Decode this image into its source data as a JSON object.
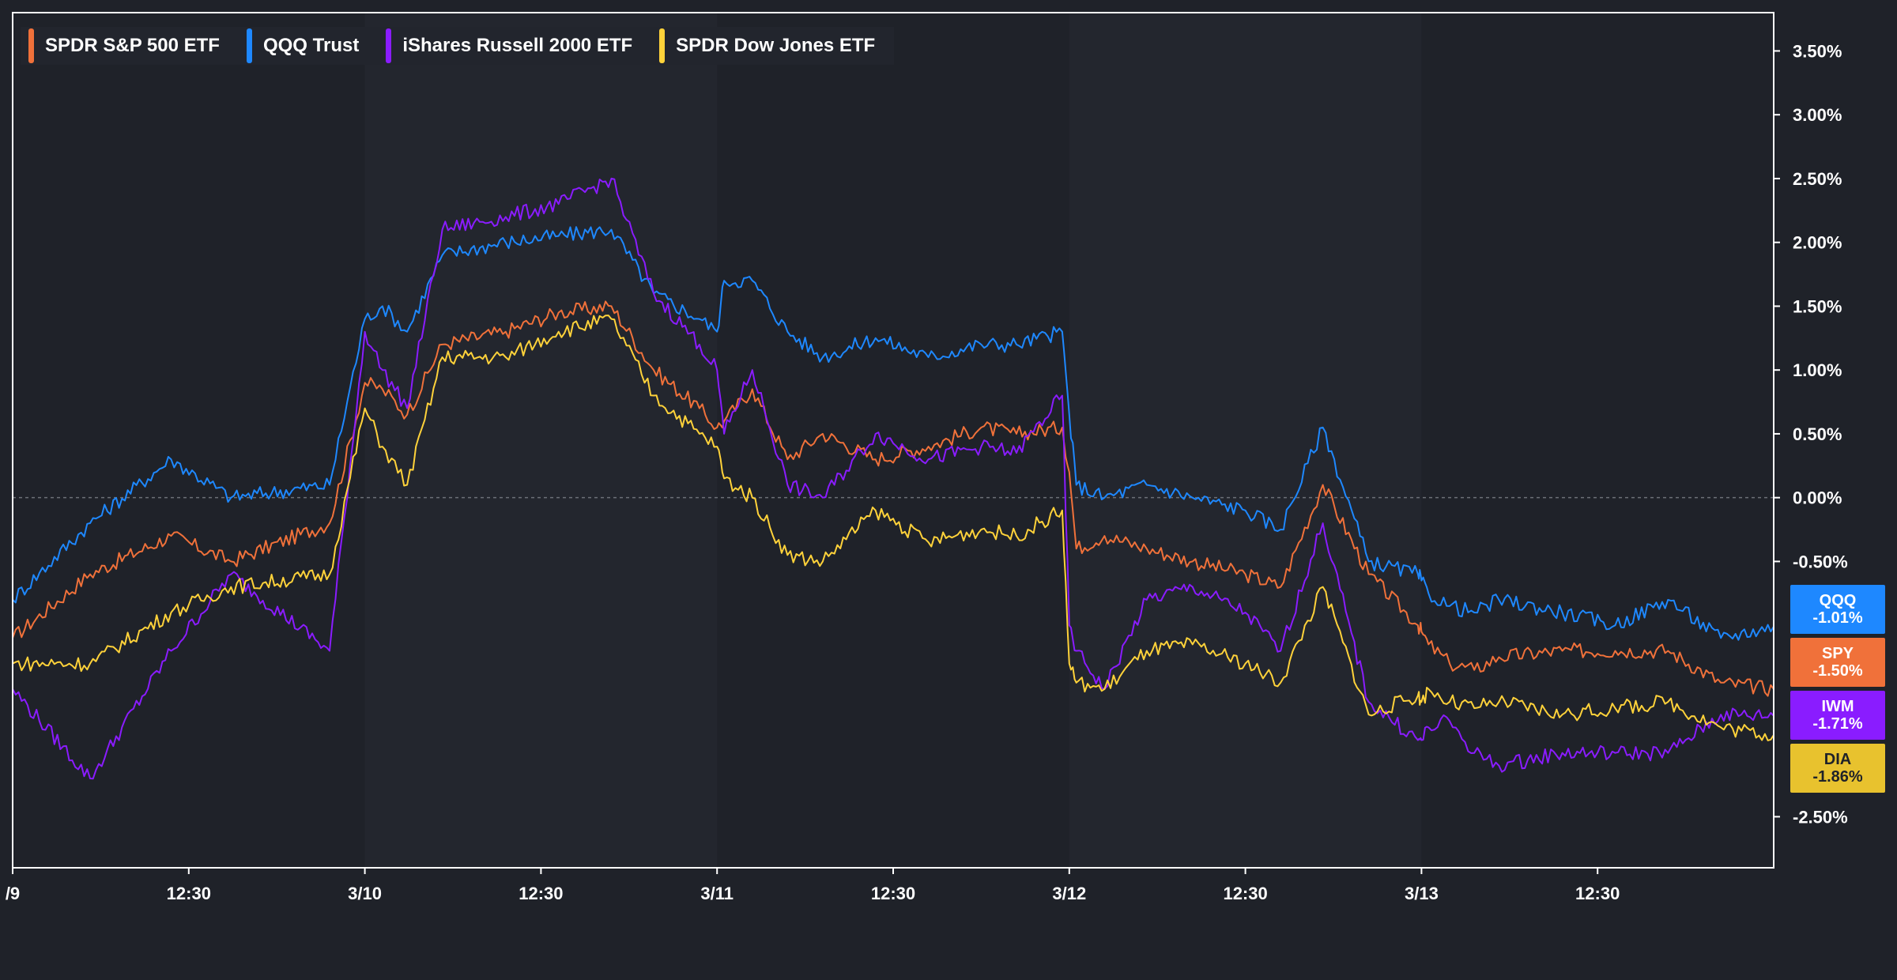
{
  "legend": {
    "items": [
      {
        "label": "SPDR S&P 500 ETF",
        "color": "#f0713a"
      },
      {
        "label": "QQQ Trust",
        "color": "#1e88ff"
      },
      {
        "label": "iShares Russell 2000 ETF",
        "color": "#8a1cff"
      },
      {
        "label": "SPDR Dow Jones ETF",
        "color": "#ffd23a"
      }
    ]
  },
  "badges": {
    "qqq": {
      "ticker": "QQQ",
      "value": "-1.01%",
      "color": "#1e88ff"
    },
    "spy": {
      "ticker": "SPY",
      "value": "-1.50%",
      "color": "#f0713a"
    },
    "iwm": {
      "ticker": "IWM",
      "value": "-1.71%",
      "color": "#8a1cff"
    },
    "dia": {
      "ticker": "DIA",
      "value": "-1.86%",
      "color": "#e8c22e"
    }
  },
  "chart_data": {
    "type": "line",
    "title": "",
    "xlabel": "",
    "ylabel": "",
    "ylim": [
      -2.9,
      3.8
    ],
    "grid": false,
    "legend_position": "top-left",
    "x_ticks": [
      "/9",
      "12:30",
      "3/10",
      "12:30",
      "3/11",
      "12:30",
      "3/12",
      "12:30",
      "3/13",
      "12:30"
    ],
    "y_ticks": [
      "3.50%",
      "3.00%",
      "2.50%",
      "2.00%",
      "1.50%",
      "1.00%",
      "0.50%",
      "0.00%",
      "-0.50%",
      "-2.50%"
    ],
    "y_tick_values": [
      3.5,
      3.0,
      2.5,
      2.0,
      1.5,
      1.0,
      0.5,
      0.0,
      -0.5,
      -2.5
    ],
    "x": [
      0.0,
      0.22,
      0.45,
      0.62,
      0.9,
      1.0,
      1.05,
      1.12,
      1.22,
      1.4,
      1.55,
      1.7,
      1.82,
      1.95,
      2.0,
      2.02,
      2.1,
      2.2,
      2.3,
      2.45,
      2.6,
      2.75,
      2.85,
      2.98,
      3.0,
      3.02,
      3.1,
      3.22,
      3.35,
      3.5,
      3.6,
      3.72,
      3.85,
      3.99,
      4.0,
      4.02,
      4.08,
      4.15,
      4.22,
      4.4,
      4.55,
      4.7,
      4.85,
      5.0
    ],
    "series": [
      {
        "name": "SPDR S&P 500 ETF",
        "color": "#f0713a",
        "values": [
          -1.1,
          -0.6,
          -0.3,
          -0.5,
          -0.2,
          0.9,
          0.85,
          0.65,
          1.2,
          1.3,
          1.45,
          1.5,
          1.0,
          0.7,
          0.55,
          0.6,
          0.85,
          0.3,
          0.5,
          0.3,
          0.4,
          0.55,
          0.5,
          0.55,
          0.2,
          -0.4,
          -0.3,
          -0.4,
          -0.5,
          -0.6,
          -0.7,
          0.1,
          -0.6,
          -1.0,
          -1.05,
          -1.15,
          -1.3,
          -1.35,
          -1.25,
          -1.2,
          -1.2,
          -1.2,
          -1.45,
          -1.5
        ]
      },
      {
        "name": "QQQ Trust",
        "color": "#1e88ff",
        "values": [
          -0.8,
          -0.2,
          0.3,
          0.0,
          0.1,
          1.4,
          1.5,
          1.3,
          1.9,
          2.0,
          2.05,
          2.1,
          1.6,
          1.4,
          1.3,
          1.7,
          1.7,
          1.3,
          1.1,
          1.25,
          1.1,
          1.2,
          1.2,
          1.3,
          0.65,
          0.1,
          0.0,
          0.1,
          0.0,
          -0.1,
          -0.25,
          0.55,
          -0.5,
          -0.6,
          -0.65,
          -0.75,
          -0.85,
          -0.9,
          -0.8,
          -0.9,
          -1.0,
          -0.8,
          -1.1,
          -1.01
        ]
      },
      {
        "name": "iShares Russell 2000 ETF",
        "color": "#8a1cff",
        "values": [
          -1.5,
          -2.2,
          -1.2,
          -0.6,
          -1.2,
          1.3,
          1.0,
          0.7,
          2.1,
          2.2,
          2.3,
          2.5,
          1.6,
          1.2,
          1.0,
          0.5,
          1.0,
          0.1,
          0.0,
          0.5,
          0.3,
          0.4,
          0.35,
          0.8,
          -1.0,
          -1.2,
          -1.5,
          -0.8,
          -0.7,
          -0.9,
          -1.2,
          -0.2,
          -1.6,
          -1.9,
          -1.9,
          -1.8,
          -1.75,
          -2.0,
          -2.1,
          -2.0,
          -2.0,
          -2.0,
          -1.7,
          -1.71
        ]
      },
      {
        "name": "SPDR Dow Jones ETF",
        "color": "#ffd23a",
        "values": [
          -1.3,
          -1.3,
          -0.9,
          -0.7,
          -0.6,
          0.7,
          0.4,
          0.1,
          1.1,
          1.1,
          1.3,
          1.4,
          0.8,
          0.5,
          0.4,
          0.15,
          0.0,
          -0.45,
          -0.5,
          -0.1,
          -0.35,
          -0.25,
          -0.3,
          -0.1,
          -1.3,
          -1.45,
          -1.5,
          -1.2,
          -1.15,
          -1.3,
          -1.45,
          -0.7,
          -1.7,
          -1.55,
          -1.6,
          -1.5,
          -1.6,
          -1.65,
          -1.6,
          -1.7,
          -1.65,
          -1.6,
          -1.8,
          -1.86
        ]
      }
    ]
  }
}
